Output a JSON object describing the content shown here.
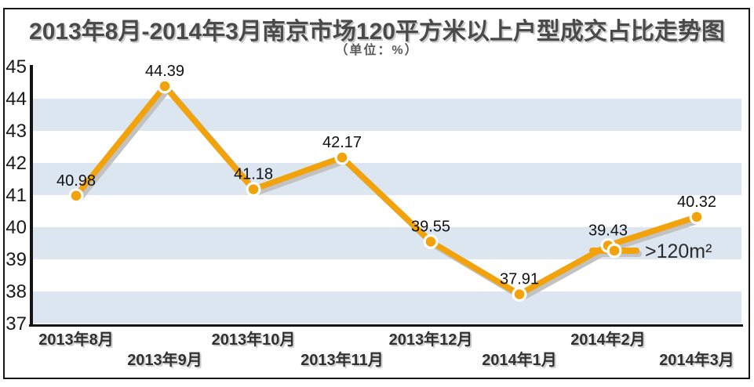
{
  "chart_data": {
    "type": "line",
    "title": "2013年8月-2014年3月南京市场120平方米以上户型成交占比走势图",
    "subtitle": "（单位：%）",
    "unit": "%",
    "categories": [
      "2013年8月",
      "2013年9月",
      "2013年10月",
      "2013年11月",
      "2013年12月",
      "2014年1月",
      "2014年2月",
      "2014年3月"
    ],
    "series": [
      {
        "name": ">120m²",
        "values": [
          40.98,
          44.39,
          41.18,
          42.17,
          39.55,
          37.91,
          39.43,
          40.32
        ]
      }
    ],
    "value_labels": [
      "40.98",
      "44.39",
      "41.18",
      "42.17",
      "39.55",
      "37.91",
      "39.43",
      "40.32"
    ],
    "yticks": [
      45,
      44,
      43,
      42,
      41,
      40,
      39,
      38,
      37
    ],
    "ylim": [
      37,
      45
    ],
    "grid": "alternating-horizontal-bands",
    "legend": {
      "label": ">120m²",
      "position": "right-of-second-to-last-point"
    },
    "colors": {
      "line": "#F2A30B",
      "line_shadow": "#C2C2C2",
      "band": "#DCE6F1",
      "axis": "#141414",
      "title": "#4A4A4A",
      "subtitle": "#595959",
      "tick_label": "#1A1A1A",
      "category_label": "#303030",
      "category_label_shadow": "#CFCFCF",
      "value_label": "#101010",
      "legend_label": "#2B2B2B",
      "dot_ring": "#FFFFFF"
    }
  }
}
